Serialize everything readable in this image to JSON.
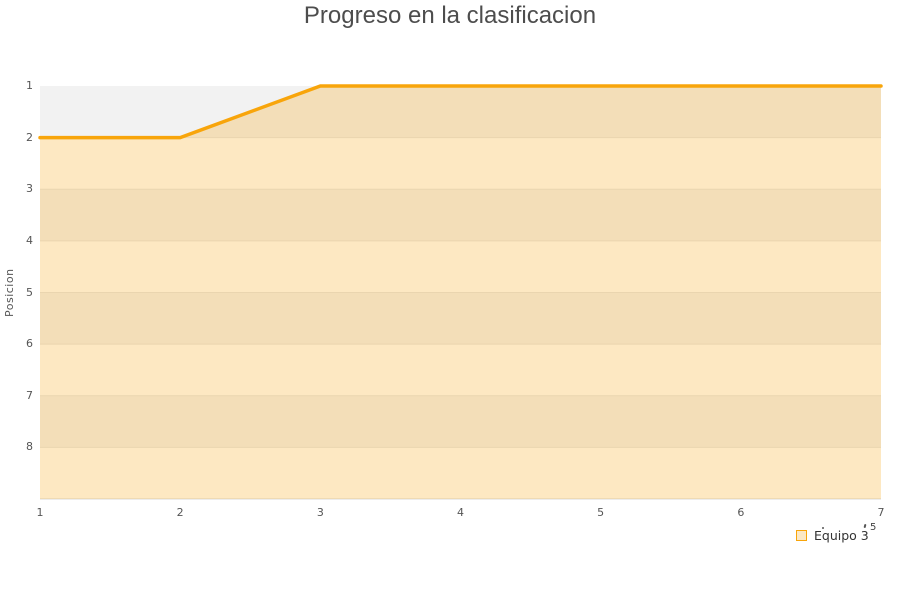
{
  "page": {
    "background": "#FFFFFF"
  },
  "chart_data": {
    "type": "area",
    "title": "Progreso en la clasificacion",
    "ylabel": "Posicion",
    "xlabel": "",
    "x": [
      1,
      2,
      3,
      4,
      5,
      6,
      7
    ],
    "series": [
      {
        "name": "Equipo 3",
        "values": [
          2,
          2,
          1,
          1,
          1,
          1,
          1
        ],
        "line_color": "#F8A50B",
        "fill_color": "rgba(248,165,11,0.25)",
        "line_width": 3.5
      }
    ],
    "x_ticks": [
      "1",
      "2",
      "3",
      "4",
      "5",
      "6",
      "7"
    ],
    "y_ticks": [
      "1",
      "2",
      "3",
      "4",
      "5",
      "6",
      "7",
      "8"
    ],
    "x_range": [
      1,
      7
    ],
    "y_axis": {
      "inverted": true,
      "min": 1,
      "max": 9
    },
    "grid": {
      "band_color_a": "#F2F2F2",
      "band_color_b": "#FFFFFF",
      "line_color": "#E6E6E6",
      "baseline_color": "#D8D8D8"
    },
    "legend": {
      "position": "bottom-right",
      "items": [
        "Equipo 3"
      ]
    },
    "title_color": "#4D4D4D",
    "axis_label_color": "#555555"
  },
  "artifacts": {
    "stray_text": "5"
  }
}
